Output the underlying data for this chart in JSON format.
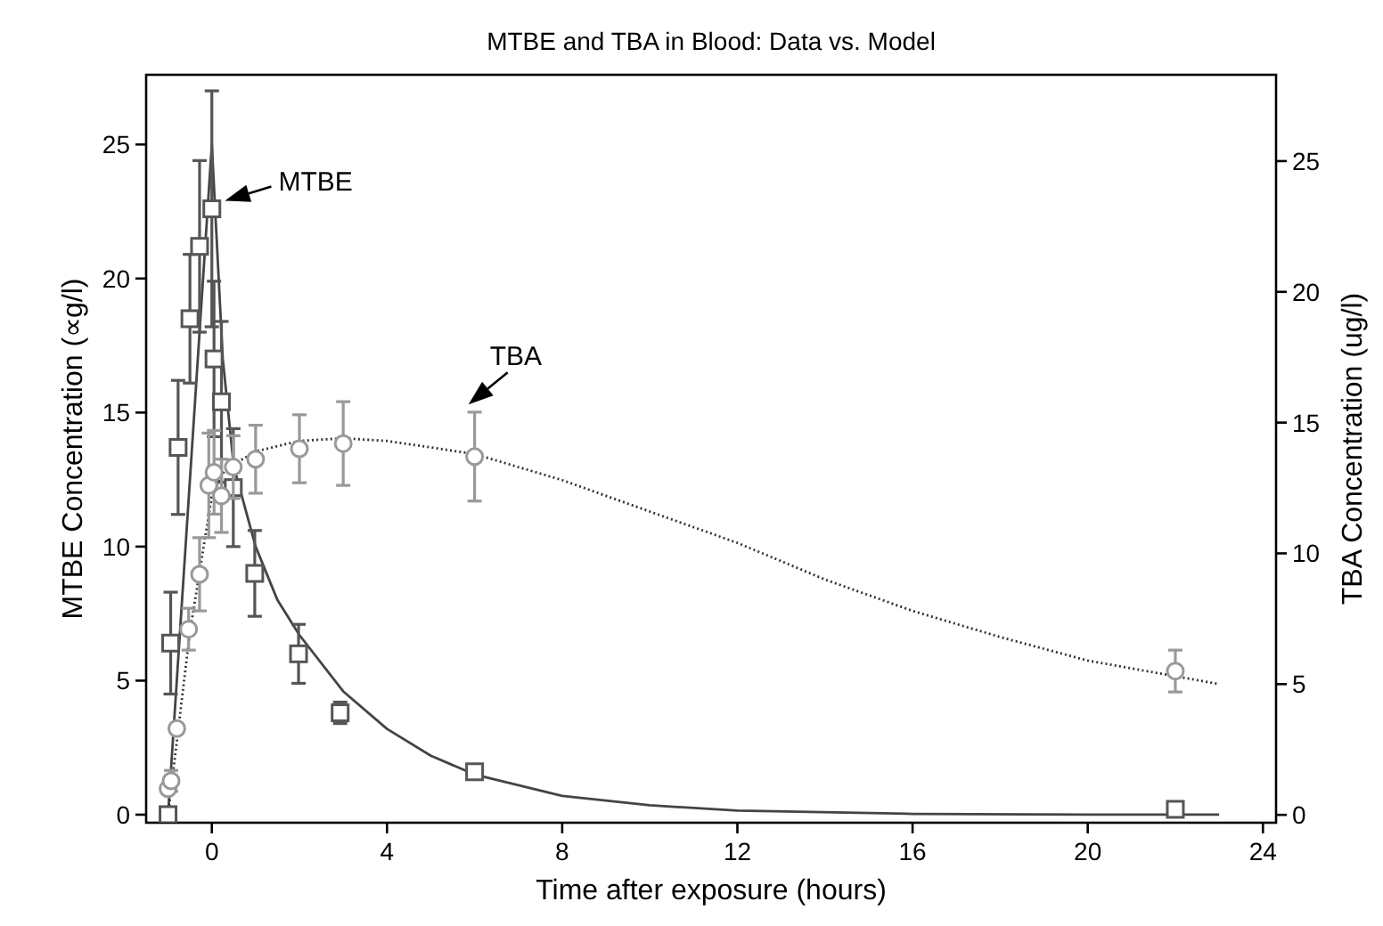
{
  "chart_data": {
    "type": "scatter",
    "title": "MTBE and TBA in Blood:  Data vs. Model",
    "xlabel": "Time after exposure (hours)",
    "ylabel": "MTBE Concentration (∝g/l)",
    "y2label": "TBA Concentration (ug/l)",
    "xlim": [
      -1.5,
      24.3
    ],
    "xticks": [
      0,
      4,
      8,
      12,
      16,
      20,
      24
    ],
    "ylim": [
      -0.3,
      27.6
    ],
    "yticks": [
      0,
      5,
      10,
      15,
      20,
      25
    ],
    "y2lim": [
      -0.3,
      28.3
    ],
    "y2ticks": [
      0,
      5,
      10,
      15,
      20,
      25
    ],
    "grid": false,
    "series": [
      {
        "type": "line",
        "color": "#444444",
        "line_style": "solid",
        "marker": "none",
        "x": [
          -1,
          -0.5,
          0,
          0.25,
          0.5,
          1,
          1.5,
          2,
          3,
          4,
          5,
          6,
          8,
          10,
          12,
          16,
          20,
          23
        ],
        "values": [
          0,
          12.5,
          25,
          17,
          13,
          10,
          8,
          6.7,
          4.6,
          3.2,
          2.2,
          1.5,
          0.7,
          0.35,
          0.15,
          0.03,
          0,
          0
        ]
      },
      {
        "type": "line",
        "axis": "y2",
        "color": "#333333",
        "line_style": "dotted",
        "marker": "none",
        "x": [
          -1,
          -0.5,
          0,
          0.3,
          1,
          2,
          3,
          4,
          6,
          8,
          10,
          12,
          14,
          16,
          18,
          20,
          22,
          23
        ],
        "values": [
          0,
          7,
          12.2,
          13.2,
          13.9,
          14.3,
          14.4,
          14.3,
          13.8,
          12.8,
          11.6,
          10.4,
          9.0,
          7.8,
          6.8,
          5.9,
          5.3,
          5.0
        ]
      },
      {
        "color": "#555555",
        "marker": "square",
        "x": [
          -1,
          -0.94,
          -0.77,
          -0.5,
          -0.28,
          0,
          0.05,
          0.22,
          0.49,
          0.98,
          1.98,
          2.93,
          6,
          22
        ],
        "values": [
          0,
          6.4,
          13.7,
          18.5,
          21.2,
          22.6,
          17.0,
          15.4,
          12.2,
          9.0,
          6.0,
          3.8,
          1.6,
          0.2
        ],
        "errors": [
          null,
          1.9,
          2.5,
          2.4,
          3.2,
          4.4,
          2.9,
          3.0,
          2.2,
          1.6,
          1.1,
          0.4,
          null,
          null
        ]
      },
      {
        "axis": "y2",
        "color": "#999999",
        "marker": "circle",
        "x": [
          -1,
          -0.93,
          -0.8,
          -0.53,
          -0.28,
          -0.07,
          0.05,
          0.22,
          0.49,
          1,
          2,
          3,
          6,
          22
        ],
        "values": [
          1.0,
          1.3,
          3.3,
          7.1,
          9.2,
          12.6,
          13.1,
          12.2,
          13.3,
          13.6,
          14.0,
          14.2,
          13.7,
          5.5
        ],
        "errors": [
          null,
          0.4,
          null,
          0.8,
          1.4,
          2.0,
          1.6,
          1.4,
          1.2,
          1.3,
          1.3,
          1.6,
          1.7,
          0.8
        ]
      }
    ],
    "annotations": [
      {
        "text": "MTBE",
        "x": 0.3,
        "y": 22.9
      },
      {
        "text": "TBA",
        "x": 5.86,
        "y": 15.3
      }
    ]
  }
}
